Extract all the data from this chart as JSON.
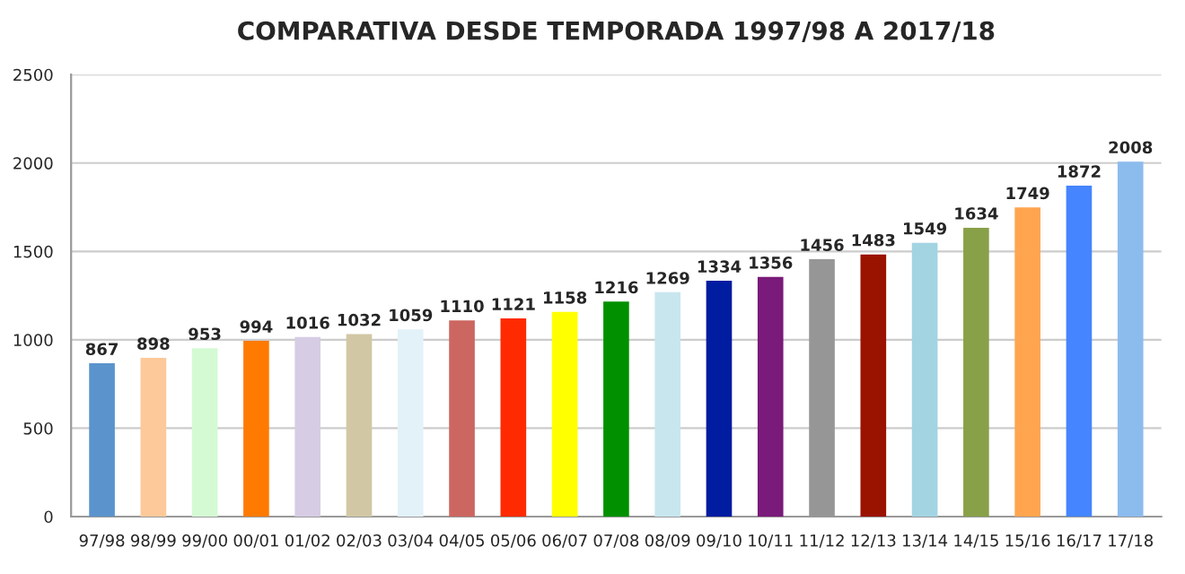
{
  "chart_data": {
    "type": "bar",
    "title": "COMPARATIVA DESDE TEMPORADA 1997/98 A 2017/18",
    "categories": [
      "97/98",
      "98/99",
      "99/00",
      "00/01",
      "01/02",
      "02/03",
      "03/04",
      "04/05",
      "05/06",
      "06/07",
      "07/08",
      "08/09",
      "09/10",
      "10/11",
      "11/12",
      "12/13",
      "13/14",
      "14/15",
      "15/16",
      "16/17",
      "17/18"
    ],
    "values": [
      867,
      898,
      953,
      994,
      1016,
      1032,
      1059,
      1110,
      1121,
      1158,
      1216,
      1269,
      1334,
      1356,
      1456,
      1483,
      1549,
      1634,
      1749,
      1872,
      2008
    ],
    "colors": [
      "#5b93cc",
      "#fdc99a",
      "#d4fad4",
      "#ff7a00",
      "#d6cce4",
      "#d2c7a4",
      "#e3f1f8",
      "#cc6660",
      "#ff2a00",
      "#ffff00",
      "#009000",
      "#c8e6ee",
      "#001ca0",
      "#7a1a7a",
      "#969696",
      "#9a1200",
      "#a3d4e2",
      "#88a048",
      "#ffa550",
      "#4585ff",
      "#8cbbee"
    ],
    "ylim": [
      0,
      2500
    ],
    "yticks": [
      0,
      500,
      1000,
      1500,
      2000,
      2500
    ],
    "grid": "y",
    "data_labels": true
  }
}
